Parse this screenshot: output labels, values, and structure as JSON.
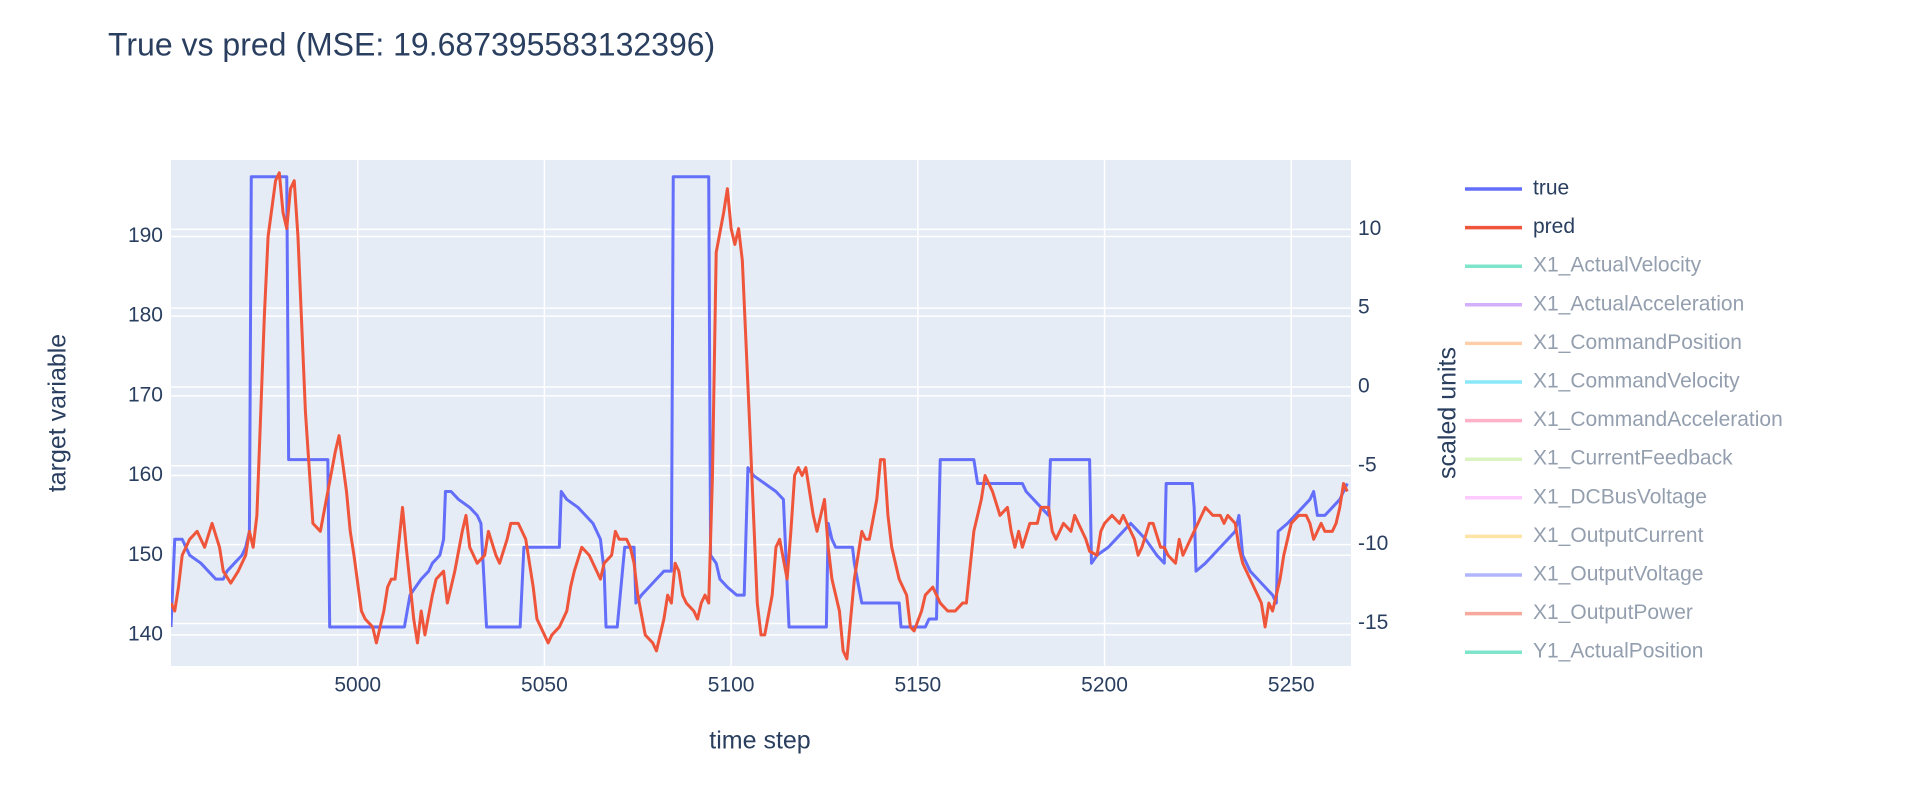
{
  "chart_data": {
    "type": "line",
    "title": "True vs pred (MSE: 19.687395583132396)",
    "x_label": "time step",
    "y_label": "target variable",
    "y2_label": "scaled units",
    "xlim": [
      4950,
      5266
    ],
    "xticks": [
      5000,
      5050,
      5100,
      5150,
      5200,
      5250
    ],
    "ylim": [
      136.1,
      199.6
    ],
    "yticks": [
      140,
      150,
      160,
      170,
      180,
      190
    ],
    "y2lim": [
      -17.7,
      14.4
    ],
    "y2ticks": [
      -15,
      -10,
      -5,
      0,
      5,
      10
    ],
    "grid": true,
    "legend": "right",
    "series": [
      {
        "name": "true",
        "color": "#636efa",
        "x": [
          4950,
          4951,
          4953,
          4955,
          4958,
          4960,
          4962,
          4964,
          4965,
          4967,
          4969,
          4970,
          4971,
          4971.5,
          4981,
          4981.5,
          4992,
          4992.5,
          5012.5,
          5014,
          5017,
          5019,
          5020,
          5022,
          5023,
          5023.5,
          5025,
          5027,
          5030,
          5032,
          5033,
          5034.5,
          5043.5,
          5044.5,
          5054,
          5054.5,
          5056,
          5059,
          5061,
          5063,
          5065,
          5066,
          5066.5,
          5069.5,
          5071.5,
          5074,
          5074.5,
          5076,
          5078,
          5080,
          5082,
          5084,
          5084.5,
          5094,
          5094.5,
          5096,
          5097,
          5099,
          5101.5,
          5103.5,
          5104.5,
          5106,
          5109,
          5112,
          5114,
          5115.5,
          5125.5,
          5126,
          5127,
          5128,
          5132.5,
          5133,
          5135,
          5145,
          5145.5,
          5152,
          5153,
          5155,
          5156,
          5165,
          5166,
          5178,
          5179,
          5181,
          5183,
          5185,
          5185.5,
          5196,
          5196.5,
          5198,
          5201,
          5203,
          5205,
          5207,
          5209,
          5211,
          5214,
          5216,
          5216.5,
          5223.5,
          5224,
          5224.5,
          5227,
          5229,
          5231,
          5233,
          5235,
          5236,
          5237,
          5239,
          5241,
          5243,
          5245,
          5246,
          5246.5,
          5249,
          5251,
          5253,
          5255,
          5256,
          5257,
          5259,
          5261,
          5263,
          5264,
          5265
        ],
        "values": [
          141,
          152,
          152,
          150,
          149,
          148,
          147,
          147,
          148,
          149,
          150,
          151,
          153,
          197.5,
          197.5,
          162,
          162,
          141,
          141,
          145,
          147,
          148,
          149,
          150,
          152,
          158,
          158,
          157,
          156,
          155,
          154,
          141,
          141,
          151,
          151,
          158,
          157,
          156,
          155,
          154,
          152,
          148,
          141,
          141,
          151,
          151,
          144,
          145,
          146,
          147,
          148,
          148,
          197.5,
          197.5,
          150,
          149,
          147,
          146,
          145,
          145,
          161,
          160,
          159,
          158,
          157,
          141,
          141,
          154,
          152,
          151,
          151,
          149,
          144,
          144,
          141,
          141,
          142,
          142,
          162,
          162,
          159,
          159,
          158,
          157,
          156,
          155,
          162,
          162,
          149,
          150,
          151,
          152,
          153,
          154,
          153,
          152,
          150,
          149,
          159,
          159,
          156,
          148,
          149,
          150,
          151,
          152,
          153,
          155,
          150,
          148,
          147,
          146,
          145,
          144,
          153,
          154,
          155,
          156,
          157,
          158,
          155,
          155,
          156,
          157,
          158,
          159
        ]
      },
      {
        "name": "pred",
        "color": "#EF553B",
        "x": [
          4950,
          4951,
          4952,
          4953,
          4955,
          4957,
          4959,
          4961,
          4963,
          4964,
          4966,
          4968,
          4970,
          4971,
          4972,
          4973,
          4975,
          4976,
          4978,
          4979,
          4980,
          4981,
          4982,
          4983,
          4984,
          4986,
          4988,
          4990,
          4992,
          4994,
          4995,
          4997,
          4998,
          4999,
          5001,
          5002,
          5004,
          5005,
          5007,
          5008,
          5009,
          5010,
          5012,
          5013,
          5015,
          5016,
          5017,
          5018,
          5020,
          5021,
          5023,
          5024,
          5026,
          5028,
          5029,
          5030,
          5032,
          5034,
          5035,
          5037,
          5038,
          5040,
          5041,
          5043,
          5045,
          5047,
          5048,
          5050,
          5051,
          5052,
          5054,
          5056,
          5057,
          5058,
          5060,
          5062,
          5064,
          5065,
          5066,
          5068,
          5069,
          5070,
          5072,
          5073,
          5074,
          5075,
          5077,
          5079,
          5080,
          5082,
          5083,
          5084,
          5085,
          5086,
          5087,
          5088,
          5090,
          5091,
          5092,
          5093,
          5094,
          5095,
          5096,
          5098,
          5099,
          5100,
          5101,
          5102,
          5103,
          5105,
          5106,
          5107,
          5108,
          5109,
          5111,
          5112,
          5113,
          5115,
          5116,
          5117,
          5118,
          5119,
          5120,
          5121,
          5122,
          5123,
          5125,
          5126,
          5127,
          5129,
          5130,
          5131,
          5132,
          5133,
          5134,
          5135,
          5136,
          5137,
          5139,
          5140,
          5141,
          5142,
          5143,
          5145,
          5147,
          5148,
          5149,
          5151,
          5152,
          5154,
          5155,
          5156,
          5158,
          5160,
          5162,
          5163,
          5165,
          5167,
          5168,
          5170,
          5172,
          5174,
          5175,
          5176,
          5177,
          5178,
          5180,
          5182,
          5183,
          5185,
          5186,
          5187,
          5189,
          5191,
          5192,
          5193,
          5195,
          5196,
          5198,
          5199,
          5200,
          5202,
          5204,
          5205,
          5206,
          5208,
          5209,
          5210,
          5212,
          5213,
          5215,
          5216,
          5217,
          5219,
          5220,
          5221,
          5223,
          5225,
          5226,
          5227,
          5229,
          5231,
          5232,
          5233,
          5235,
          5236,
          5237,
          5239,
          5240,
          5242,
          5243,
          5244,
          5245,
          5247,
          5248,
          5250,
          5252,
          5254,
          5255,
          5256,
          5257,
          5258,
          5259,
          5261,
          5262,
          5263,
          5264,
          5265
        ],
        "values": [
          144,
          143,
          146,
          150,
          152,
          153,
          151,
          154,
          151,
          148,
          146.5,
          148,
          150,
          153,
          151,
          155,
          180,
          190,
          197,
          198,
          193,
          191,
          196,
          197,
          190,
          168,
          154,
          153,
          158,
          163,
          165,
          158,
          153,
          150,
          143,
          142,
          141,
          139,
          143,
          146,
          147,
          147,
          156,
          151,
          142,
          139,
          143,
          140,
          145,
          147,
          148,
          144,
          148,
          153,
          155,
          151,
          149,
          150,
          153,
          150,
          149,
          152,
          154,
          154,
          152,
          146,
          142,
          140,
          139,
          140,
          141,
          143,
          146,
          148,
          151,
          150,
          148,
          147,
          149,
          150,
          153,
          152,
          152,
          151,
          149,
          145,
          140,
          139,
          138,
          142,
          145,
          144,
          149,
          148,
          145,
          144,
          143,
          142,
          144,
          145,
          144,
          160,
          188,
          193,
          196,
          191,
          189,
          191,
          187,
          166,
          155,
          144,
          140,
          140,
          145,
          151,
          152,
          147,
          153,
          160,
          161,
          160,
          161,
          158,
          155,
          153,
          157,
          151,
          147,
          143,
          138,
          137,
          142,
          147,
          150,
          153,
          152,
          152,
          157,
          162,
          162,
          155,
          151,
          147,
          145,
          141,
          140.5,
          143,
          145,
          146,
          145,
          144,
          143,
          143,
          144,
          144,
          153,
          157,
          160,
          158,
          155,
          156,
          153,
          151,
          153,
          151,
          154,
          154,
          156,
          156,
          153,
          152,
          154,
          153,
          155,
          154,
          152,
          150.5,
          150,
          153,
          154,
          155,
          154,
          155,
          154,
          152,
          150,
          151,
          154,
          154,
          151,
          151,
          150,
          149,
          152,
          150,
          152,
          154,
          155,
          156,
          155,
          155,
          154,
          155,
          154,
          151,
          149,
          147,
          146,
          144,
          141,
          144,
          143,
          147,
          150,
          154,
          155,
          155,
          154,
          152,
          153,
          154,
          153,
          153,
          154,
          156,
          159,
          158
        ]
      },
      {
        "name": "X1_ActualVelocity",
        "color": "#00cc96",
        "visible": "legendonly",
        "axis": "y2"
      },
      {
        "name": "X1_ActualAcceleration",
        "color": "#ab63fa",
        "visible": "legendonly",
        "axis": "y2"
      },
      {
        "name": "X1_CommandPosition",
        "color": "#FFA15A",
        "visible": "legendonly",
        "axis": "y2"
      },
      {
        "name": "X1_CommandVelocity",
        "color": "#19d3f3",
        "visible": "legendonly",
        "axis": "y2"
      },
      {
        "name": "X1_CommandAcceleration",
        "color": "#FF6692",
        "visible": "legendonly",
        "axis": "y2"
      },
      {
        "name": "X1_CurrentFeedback",
        "color": "#B6E880",
        "visible": "legendonly",
        "axis": "y2"
      },
      {
        "name": "X1_DCBusVoltage",
        "color": "#FF97FF",
        "visible": "legendonly",
        "axis": "y2"
      },
      {
        "name": "X1_OutputCurrent",
        "color": "#FECB52",
        "visible": "legendonly",
        "axis": "y2"
      },
      {
        "name": "X1_OutputVoltage",
        "color": "#636efa",
        "visible": "legendonly",
        "axis": "y2"
      },
      {
        "name": "X1_OutputPower",
        "color": "#EF553B",
        "visible": "legendonly",
        "axis": "y2"
      },
      {
        "name": "Y1_ActualPosition",
        "color": "#00cc96",
        "visible": "legendonly",
        "axis": "y2"
      }
    ]
  }
}
